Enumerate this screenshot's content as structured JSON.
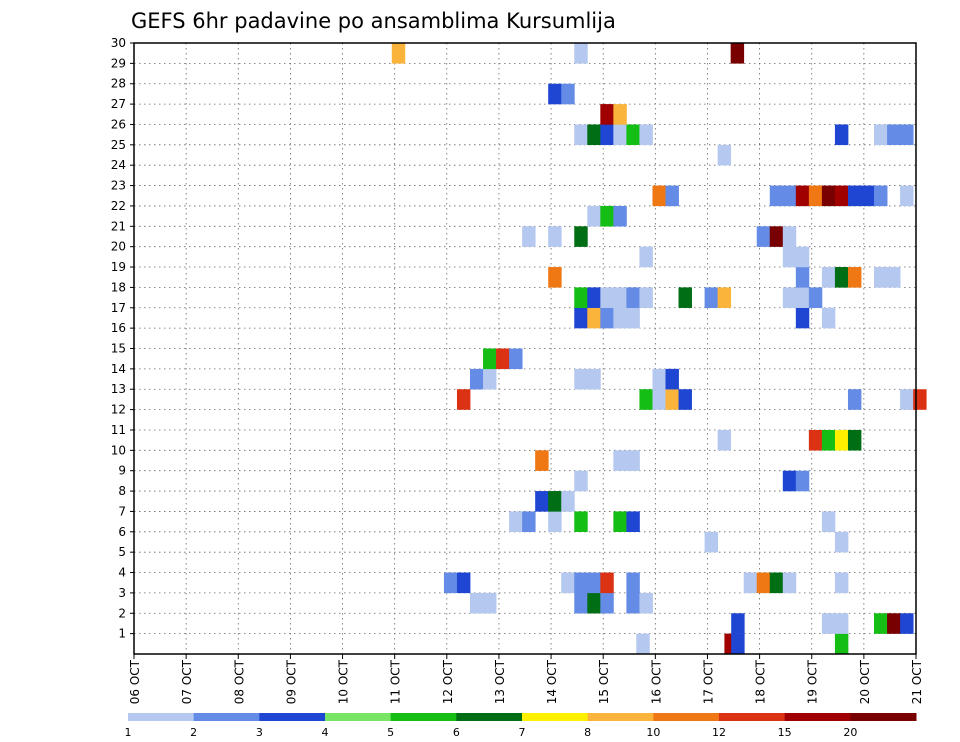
{
  "chart_data": {
    "type": "heatmap",
    "title": "GEFS 6hr padavine po ansamblima Kursumlija",
    "x_labels": [
      "06 OCT",
      "07 OCT",
      "08 OCT",
      "09 OCT",
      "10 OCT",
      "11 OCT",
      "12 OCT",
      "13 OCT",
      "14 OCT",
      "15 OCT",
      "16 OCT",
      "17 OCT",
      "18 OCT",
      "19 OCT",
      "20 OCT",
      "21 OCT"
    ],
    "y_labels": [
      "1",
      "2",
      "3",
      "4",
      "5",
      "6",
      "7",
      "8",
      "9",
      "10",
      "11",
      "12",
      "13",
      "14",
      "15",
      "16",
      "17",
      "18",
      "19",
      "20",
      "21",
      "22",
      "23",
      "24",
      "25",
      "26",
      "27",
      "28",
      "29",
      "30"
    ],
    "ylim": [
      0,
      30
    ],
    "grid": true,
    "colorbar": {
      "labels": [
        "1",
        "2",
        "3",
        "4",
        "5",
        "6",
        "7",
        "8",
        "10",
        "12",
        "15",
        "20"
      ],
      "colors": [
        "#b4c8f0",
        "#648ce6",
        "#1e46d2",
        "#78e664",
        "#14be14",
        "#006e14",
        "#fff000",
        "#fab43c",
        "#f07814",
        "#dc3214",
        "#a00000",
        "#780000"
      ]
    },
    "cells": [
      {
        "y": 0,
        "x": 9.76,
        "v": 1
      },
      {
        "y": 0,
        "x": 11.45,
        "v": 15
      },
      {
        "y": 0,
        "x": 11.58,
        "v": 3
      },
      {
        "y": 0,
        "x": 13.57,
        "v": 5
      },
      {
        "y": 1,
        "x": 11.58,
        "v": 3
      },
      {
        "y": 1,
        "x": 13.32,
        "v": 1
      },
      {
        "y": 1,
        "x": 13.57,
        "v": 1
      },
      {
        "y": 1,
        "x": 14.32,
        "v": 5
      },
      {
        "y": 1,
        "x": 14.57,
        "v": 20
      },
      {
        "y": 1,
        "x": 14.82,
        "v": 3
      },
      {
        "y": 2,
        "x": 6.57,
        "v": 1
      },
      {
        "y": 2,
        "x": 6.82,
        "v": 1
      },
      {
        "y": 2,
        "x": 8.57,
        "v": 2
      },
      {
        "y": 2,
        "x": 8.82,
        "v": 6
      },
      {
        "y": 2,
        "x": 9.07,
        "v": 2
      },
      {
        "y": 2,
        "x": 9.57,
        "v": 2
      },
      {
        "y": 2,
        "x": 9.82,
        "v": 1
      },
      {
        "y": 3,
        "x": 6.07,
        "v": 2
      },
      {
        "y": 3,
        "x": 6.32,
        "v": 3
      },
      {
        "y": 3,
        "x": 8.32,
        "v": 1
      },
      {
        "y": 3,
        "x": 8.57,
        "v": 2
      },
      {
        "y": 3,
        "x": 8.82,
        "v": 2
      },
      {
        "y": 3,
        "x": 9.07,
        "v": 12
      },
      {
        "y": 3,
        "x": 9.57,
        "v": 2
      },
      {
        "y": 3,
        "x": 11.82,
        "v": 1
      },
      {
        "y": 3,
        "x": 12.07,
        "v": 10
      },
      {
        "y": 3,
        "x": 12.32,
        "v": 6
      },
      {
        "y": 3,
        "x": 12.57,
        "v": 1
      },
      {
        "y": 3,
        "x": 13.57,
        "v": 1
      },
      {
        "y": 5,
        "x": 11.07,
        "v": 1
      },
      {
        "y": 5,
        "x": 13.57,
        "v": 1
      },
      {
        "y": 6,
        "x": 7.32,
        "v": 1
      },
      {
        "y": 6,
        "x": 7.57,
        "v": 2
      },
      {
        "y": 6,
        "x": 8.07,
        "v": 1
      },
      {
        "y": 6,
        "x": 8.57,
        "v": 5
      },
      {
        "y": 6,
        "x": 9.32,
        "v": 5
      },
      {
        "y": 6,
        "x": 9.57,
        "v": 3
      },
      {
        "y": 6,
        "x": 13.32,
        "v": 1
      },
      {
        "y": 7,
        "x": 7.82,
        "v": 3
      },
      {
        "y": 7,
        "x": 8.07,
        "v": 6
      },
      {
        "y": 7,
        "x": 8.32,
        "v": 1
      },
      {
        "y": 8,
        "x": 8.57,
        "v": 1
      },
      {
        "y": 8,
        "x": 12.57,
        "v": 3
      },
      {
        "y": 8,
        "x": 12.82,
        "v": 2
      },
      {
        "y": 9,
        "x": 7.82,
        "v": 10
      },
      {
        "y": 9,
        "x": 9.32,
        "v": 1
      },
      {
        "y": 9,
        "x": 9.57,
        "v": 1
      },
      {
        "y": 10,
        "x": 11.32,
        "v": 1
      },
      {
        "y": 10,
        "x": 13.07,
        "v": 12
      },
      {
        "y": 10,
        "x": 13.32,
        "v": 5
      },
      {
        "y": 10,
        "x": 13.57,
        "v": 7
      },
      {
        "y": 10,
        "x": 13.82,
        "v": 6
      },
      {
        "y": 12,
        "x": 6.32,
        "v": 12
      },
      {
        "y": 12,
        "x": 9.82,
        "v": 5
      },
      {
        "y": 12,
        "x": 10.07,
        "v": 1
      },
      {
        "y": 12,
        "x": 10.32,
        "v": 8
      },
      {
        "y": 12,
        "x": 10.57,
        "v": 3
      },
      {
        "y": 12,
        "x": 13.82,
        "v": 2
      },
      {
        "y": 12,
        "x": 14.82,
        "v": 1
      },
      {
        "y": 12,
        "x": 15.07,
        "v": 12
      },
      {
        "y": 13,
        "x": 6.57,
        "v": 2
      },
      {
        "y": 13,
        "x": 6.82,
        "v": 1
      },
      {
        "y": 13,
        "x": 8.57,
        "v": 1
      },
      {
        "y": 13,
        "x": 8.82,
        "v": 1
      },
      {
        "y": 13,
        "x": 10.07,
        "v": 1
      },
      {
        "y": 13,
        "x": 10.32,
        "v": 3
      },
      {
        "y": 14,
        "x": 6.82,
        "v": 5
      },
      {
        "y": 14,
        "x": 7.07,
        "v": 12
      },
      {
        "y": 14,
        "x": 7.32,
        "v": 2
      },
      {
        "y": 16,
        "x": 8.57,
        "v": 3
      },
      {
        "y": 16,
        "x": 8.82,
        "v": 8
      },
      {
        "y": 16,
        "x": 9.07,
        "v": 2
      },
      {
        "y": 16,
        "x": 9.32,
        "v": 1
      },
      {
        "y": 16,
        "x": 9.57,
        "v": 1
      },
      {
        "y": 16,
        "x": 12.82,
        "v": 3
      },
      {
        "y": 16,
        "x": 13.32,
        "v": 1
      },
      {
        "y": 17,
        "x": 8.57,
        "v": 5
      },
      {
        "y": 17,
        "x": 8.82,
        "v": 3
      },
      {
        "y": 17,
        "x": 9.07,
        "v": 1
      },
      {
        "y": 17,
        "x": 9.32,
        "v": 1
      },
      {
        "y": 17,
        "x": 9.57,
        "v": 2
      },
      {
        "y": 17,
        "x": 9.82,
        "v": 1
      },
      {
        "y": 17,
        "x": 10.57,
        "v": 6
      },
      {
        "y": 17,
        "x": 11.07,
        "v": 2
      },
      {
        "y": 17,
        "x": 11.32,
        "v": 8
      },
      {
        "y": 17,
        "x": 12.57,
        "v": 1
      },
      {
        "y": 17,
        "x": 12.82,
        "v": 1
      },
      {
        "y": 17,
        "x": 13.07,
        "v": 2
      },
      {
        "y": 18,
        "x": 8.07,
        "v": 10
      },
      {
        "y": 18,
        "x": 12.82,
        "v": 2
      },
      {
        "y": 18,
        "x": 13.32,
        "v": 1
      },
      {
        "y": 18,
        "x": 13.57,
        "v": 6
      },
      {
        "y": 18,
        "x": 13.82,
        "v": 10
      },
      {
        "y": 18,
        "x": 14.32,
        "v": 1
      },
      {
        "y": 18,
        "x": 14.57,
        "v": 1
      },
      {
        "y": 19,
        "x": 9.82,
        "v": 1
      },
      {
        "y": 19,
        "x": 12.57,
        "v": 1
      },
      {
        "y": 19,
        "x": 12.82,
        "v": 1
      },
      {
        "y": 20,
        "x": 7.57,
        "v": 1
      },
      {
        "y": 20,
        "x": 8.07,
        "v": 1
      },
      {
        "y": 20,
        "x": 8.57,
        "v": 6
      },
      {
        "y": 20,
        "x": 12.07,
        "v": 2
      },
      {
        "y": 20,
        "x": 12.32,
        "v": 20
      },
      {
        "y": 20,
        "x": 12.57,
        "v": 1
      },
      {
        "y": 21,
        "x": 8.82,
        "v": 1
      },
      {
        "y": 21,
        "x": 9.07,
        "v": 5
      },
      {
        "y": 21,
        "x": 9.32,
        "v": 2
      },
      {
        "y": 22,
        "x": 10.07,
        "v": 10
      },
      {
        "y": 22,
        "x": 10.32,
        "v": 2
      },
      {
        "y": 22,
        "x": 12.32,
        "v": 2
      },
      {
        "y": 22,
        "x": 12.57,
        "v": 2
      },
      {
        "y": 22,
        "x": 12.82,
        "v": 15
      },
      {
        "y": 22,
        "x": 13.07,
        "v": 10
      },
      {
        "y": 22,
        "x": 13.32,
        "v": 20
      },
      {
        "y": 22,
        "x": 13.57,
        "v": 15
      },
      {
        "y": 22,
        "x": 13.82,
        "v": 3
      },
      {
        "y": 22,
        "x": 14.07,
        "v": 3
      },
      {
        "y": 22,
        "x": 14.32,
        "v": 2
      },
      {
        "y": 22,
        "x": 14.82,
        "v": 1
      },
      {
        "y": 24,
        "x": 11.32,
        "v": 1
      },
      {
        "y": 25,
        "x": 8.57,
        "v": 1
      },
      {
        "y": 25,
        "x": 8.82,
        "v": 6
      },
      {
        "y": 25,
        "x": 9.07,
        "v": 3
      },
      {
        "y": 25,
        "x": 9.32,
        "v": 1
      },
      {
        "y": 25,
        "x": 9.57,
        "v": 5
      },
      {
        "y": 25,
        "x": 9.82,
        "v": 1
      },
      {
        "y": 25,
        "x": 13.57,
        "v": 3
      },
      {
        "y": 25,
        "x": 14.32,
        "v": 1
      },
      {
        "y": 25,
        "x": 14.57,
        "v": 2
      },
      {
        "y": 25,
        "x": 14.82,
        "v": 2
      },
      {
        "y": 26,
        "x": 9.07,
        "v": 15
      },
      {
        "y": 26,
        "x": 9.32,
        "v": 8
      },
      {
        "y": 27,
        "x": 8.07,
        "v": 3
      },
      {
        "y": 27,
        "x": 8.32,
        "v": 2
      },
      {
        "y": 29,
        "x": 5.07,
        "v": 8
      },
      {
        "y": 29,
        "x": 8.57,
        "v": 1
      },
      {
        "y": 29,
        "x": 11.57,
        "v": 20
      }
    ]
  }
}
